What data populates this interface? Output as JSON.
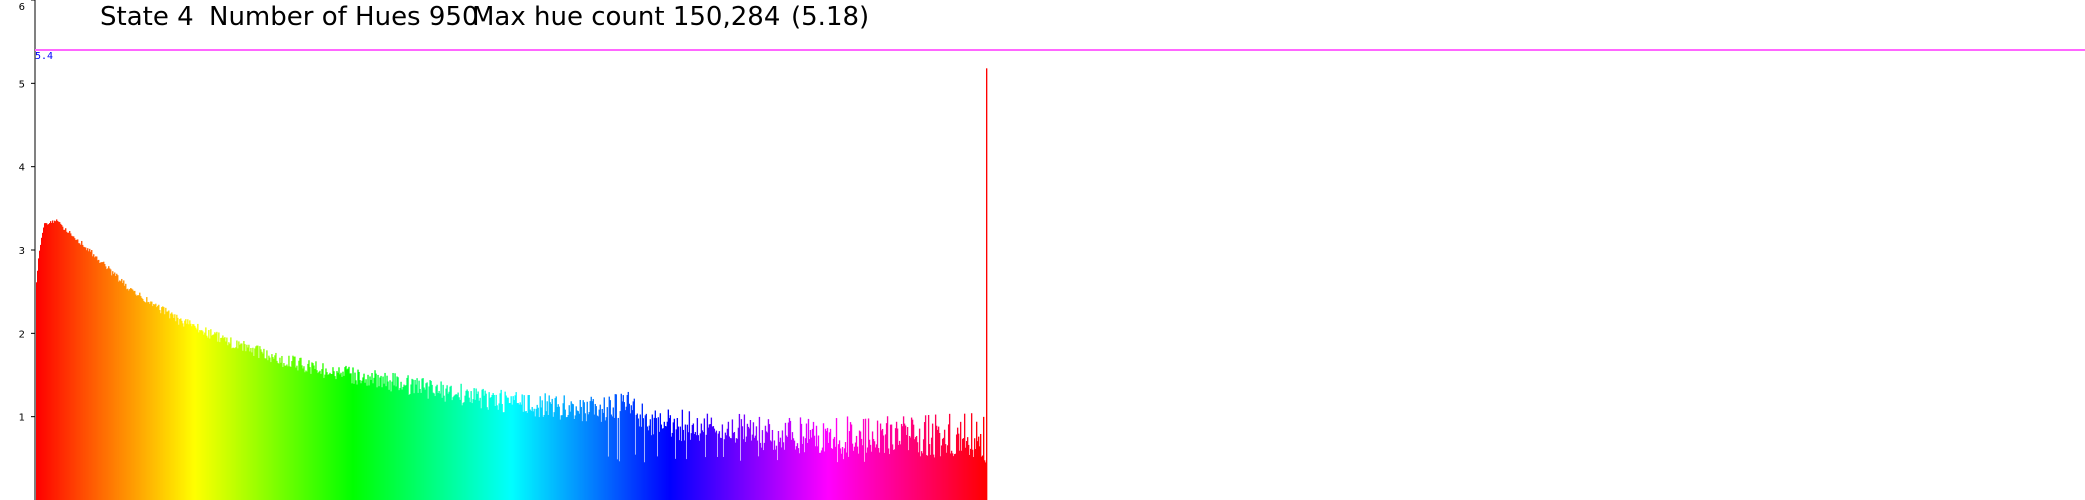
{
  "header": {
    "state": "State 4",
    "hues": "Number of Hues 950",
    "max": "Max hue count 150,284",
    "log_max": "(5.18)"
  },
  "reference_line": {
    "value": 5.4,
    "label": "5.4",
    "color": "#ff66ff"
  },
  "chart_data": {
    "type": "bar",
    "title": "State 4   Number of Hues 950  Max hue count 150,284    (5.18)",
    "xlabel": "",
    "ylabel": "",
    "yscale": "log10 of hue count",
    "ylim": [
      0,
      6
    ],
    "yticks": [
      1,
      2,
      3,
      4,
      5,
      6
    ],
    "ytick_labels": [
      "1",
      "2",
      "3",
      "4",
      "5",
      "6"
    ],
    "num_hues": 950,
    "max_hue_count": 150284,
    "max_log_value": 5.18,
    "hue_range": [
      0,
      360
    ],
    "grid": false,
    "legend": "none",
    "profile_x_fraction": [
      0,
      0.003,
      0.008,
      0.02,
      0.05,
      0.1,
      0.15,
      0.2,
      0.25,
      0.3,
      0.35,
      0.4,
      0.45,
      0.5,
      0.55,
      0.6,
      0.62,
      0.64,
      0.66,
      0.7,
      0.75,
      0.8,
      0.85,
      0.9,
      0.95,
      1.0
    ],
    "profile_values": [
      2.6,
      3.0,
      3.3,
      3.35,
      3.05,
      2.5,
      2.15,
      1.9,
      1.7,
      1.55,
      1.45,
      1.35,
      1.25,
      1.15,
      1.1,
      1.05,
      1.15,
      0.95,
      0.9,
      0.85,
      0.8,
      0.75,
      0.75,
      0.75,
      0.75,
      0.75
    ],
    "min_bar_value": 0.45,
    "last_bar": {
      "hue_index": 949,
      "value": 5.18,
      "color": "#ff0000"
    }
  }
}
